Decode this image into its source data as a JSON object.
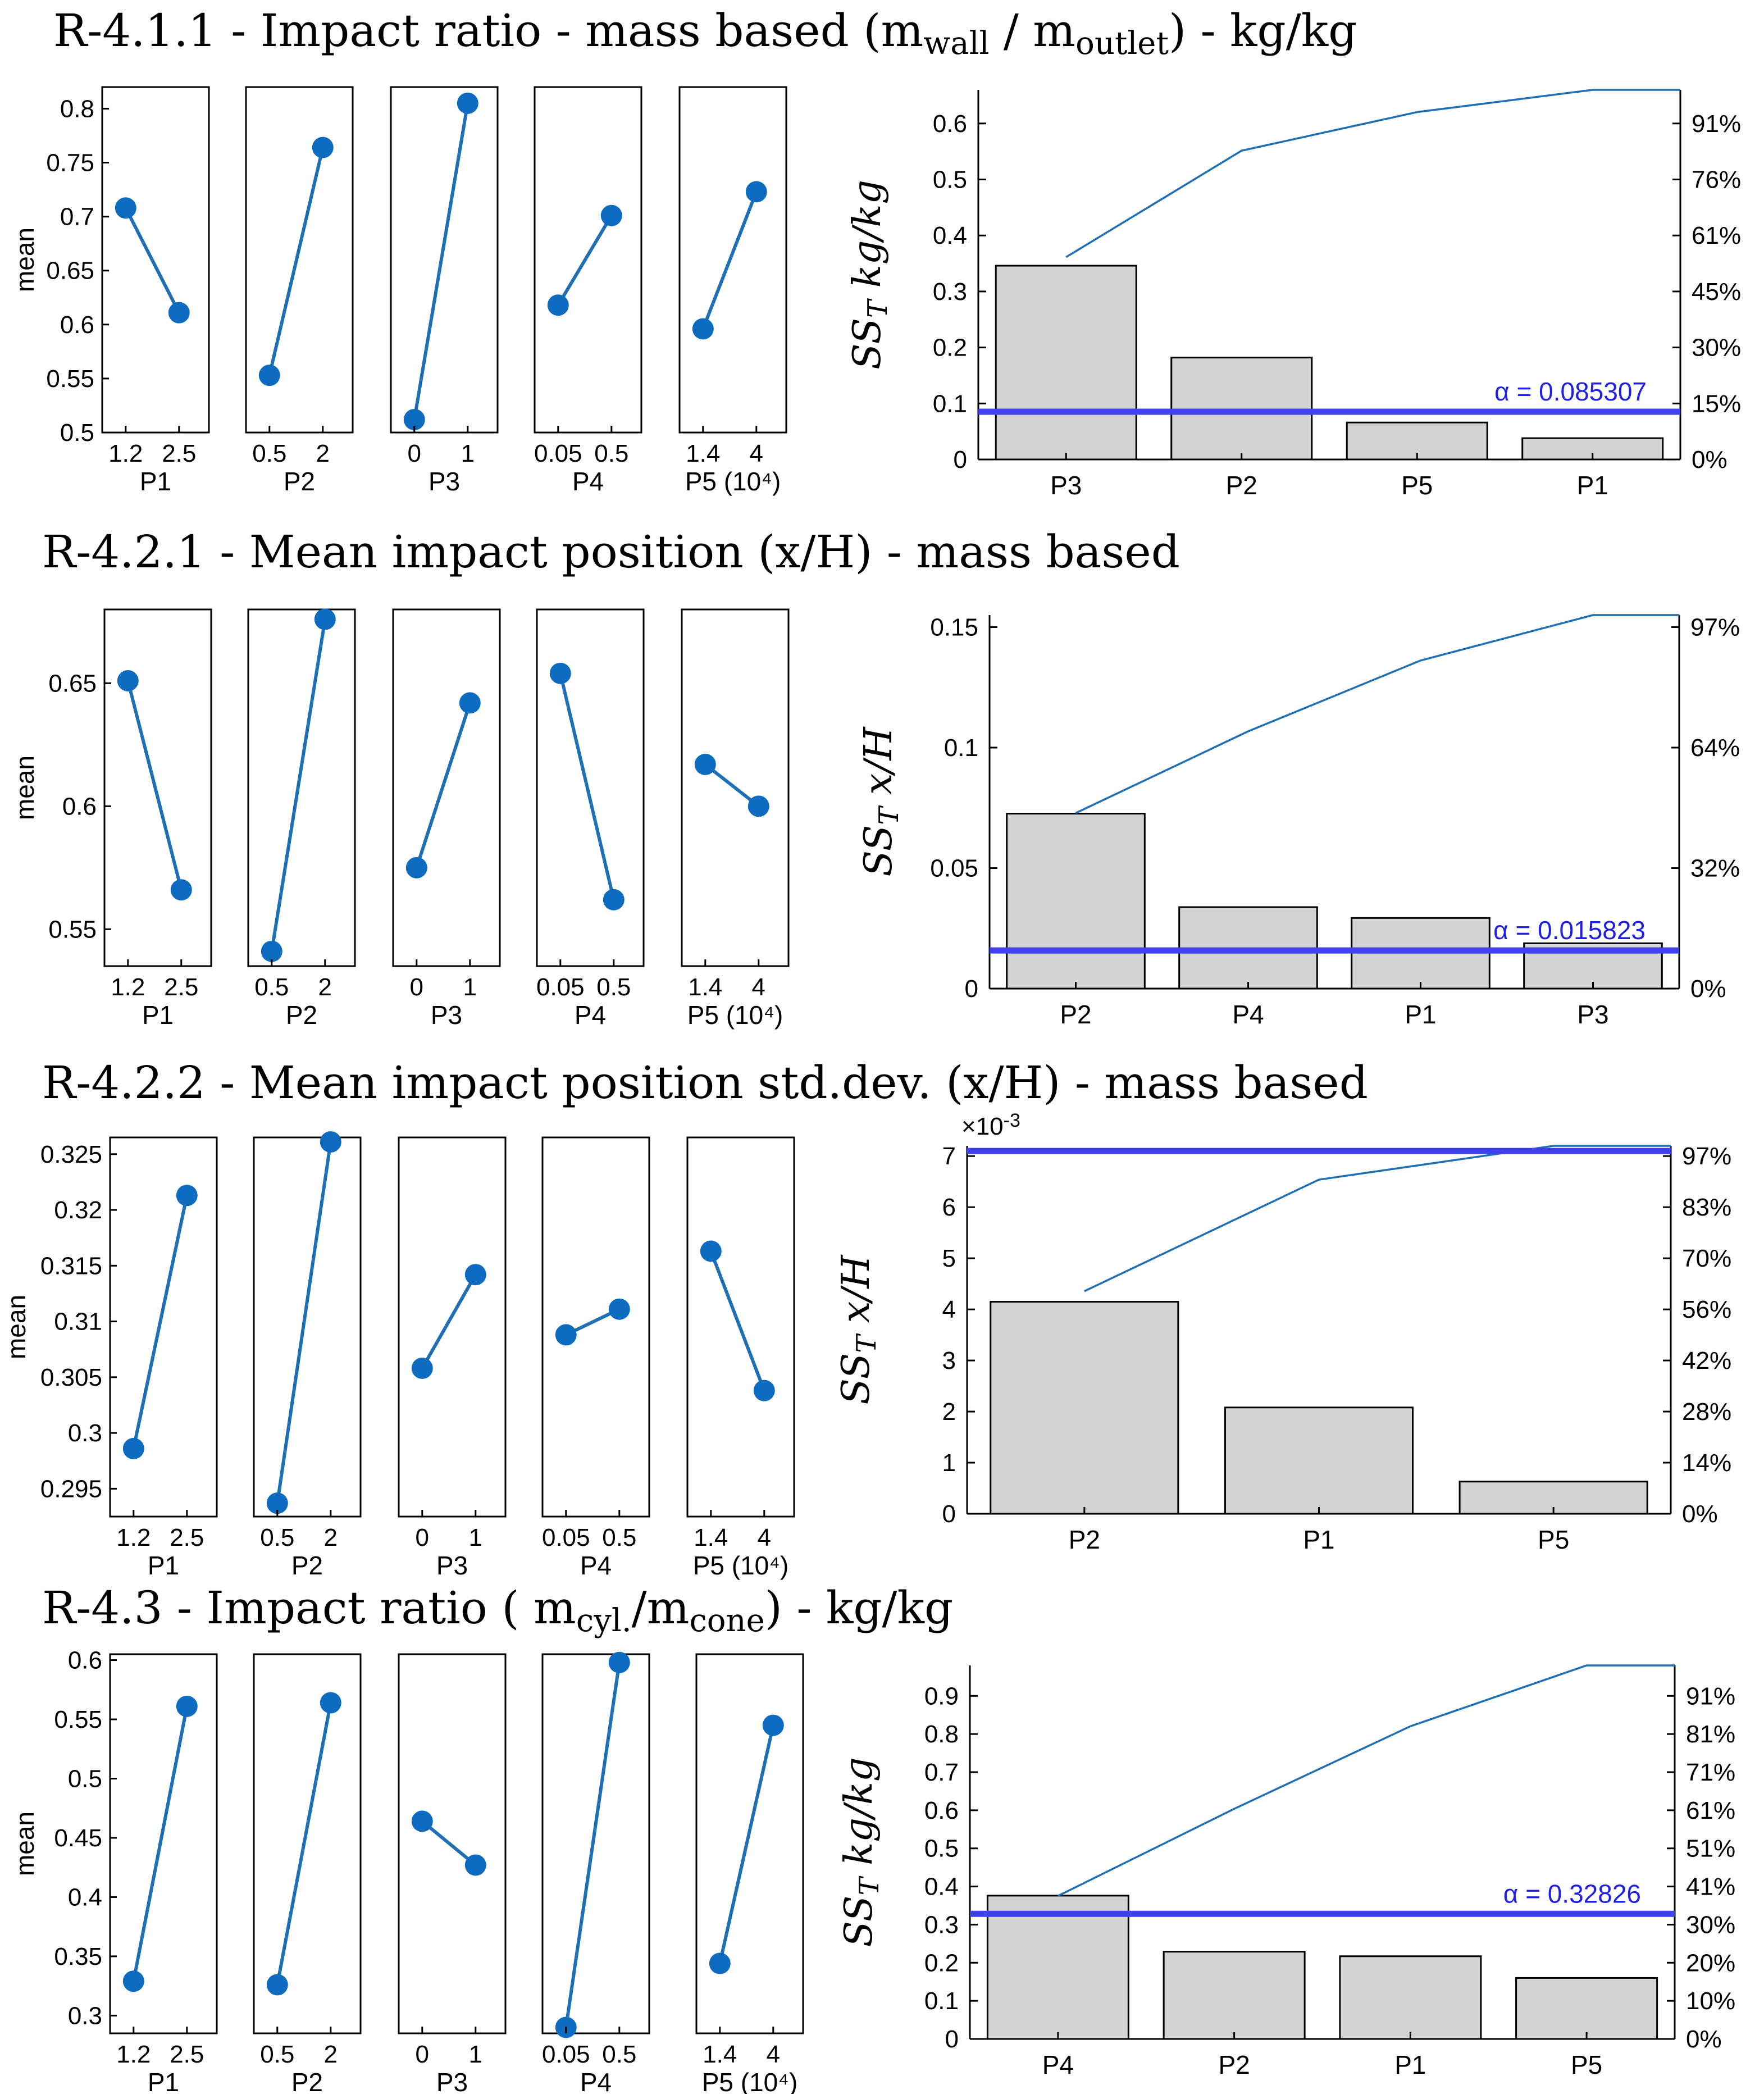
{
  "colors": {
    "line": "#1f6fb4",
    "marker": "#0d6cc0",
    "bar": "#d3d3d3",
    "alpha_line": "#4040ee",
    "alpha_text": "#1f1fe6"
  },
  "chart_data": [
    {
      "title_text": "R-4.1.1 - Impact ratio - mass based (m",
      "title_sub1": "wall",
      "title_mid": " / m",
      "title_sub2": "outlet",
      "title_tail": ") - kg/kg",
      "main_effects": {
        "type": "line",
        "ylabel": "mean",
        "ylim": [
          0.5,
          0.82
        ],
        "yticks": [
          "0.5",
          "0.55",
          "0.6",
          "0.65",
          "0.7",
          "0.75",
          "0.8"
        ],
        "panels": [
          {
            "name": "P1",
            "x": [
              "1.2",
              "2.5"
            ],
            "y": [
              0.708,
              0.611
            ]
          },
          {
            "name": "P2",
            "x": [
              "0.5",
              "2"
            ],
            "y": [
              0.553,
              0.764
            ]
          },
          {
            "name": "P3",
            "x": [
              "0",
              "1"
            ],
            "y": [
              0.512,
              0.805
            ]
          },
          {
            "name": "P4",
            "x": [
              "0.05",
              "0.5"
            ],
            "y": [
              0.618,
              0.701
            ]
          },
          {
            "name": "P5 (10⁴)",
            "x": [
              "1.4",
              "4"
            ],
            "y": [
              0.596,
              0.723
            ]
          }
        ]
      },
      "pareto": {
        "type": "bar",
        "ylabel_main": "SS",
        "ylabel_sub": "T",
        "ylabel_unit": " kg/kg",
        "categories": [
          "P3",
          "P2",
          "P5",
          "P1"
        ],
        "values": [
          0.346,
          0.182,
          0.066,
          0.038
        ],
        "ylim": [
          0,
          0.66
        ],
        "yticks": [
          "0",
          "0.1",
          "0.2",
          "0.3",
          "0.4",
          "0.5",
          "0.6"
        ],
        "y2ticks": [
          "0%",
          "15%",
          "30%",
          "45%",
          "61%",
          "76%",
          "91%"
        ],
        "alpha": 0.085307,
        "alpha_label": "α = 0.085307",
        "exponent_label": ""
      }
    },
    {
      "title_text": "R-4.2.1 - Mean impact position (x/H) - mass based",
      "title_sub1": "",
      "title_mid": "",
      "title_sub2": "",
      "title_tail": "",
      "main_effects": {
        "type": "line",
        "ylabel": "mean",
        "ylim": [
          0.535,
          0.68
        ],
        "yticks": [
          "0.55",
          "0.6",
          "0.65"
        ],
        "panels": [
          {
            "name": "P1",
            "x": [
              "1.2",
              "2.5"
            ],
            "y": [
              0.651,
              0.566
            ]
          },
          {
            "name": "P2",
            "x": [
              "0.5",
              "2"
            ],
            "y": [
              0.541,
              0.676
            ]
          },
          {
            "name": "P3",
            "x": [
              "0",
              "1"
            ],
            "y": [
              0.575,
              0.642
            ]
          },
          {
            "name": "P4",
            "x": [
              "0.05",
              "0.5"
            ],
            "y": [
              0.654,
              0.562
            ]
          },
          {
            "name": "P5 (10⁴)",
            "x": [
              "1.4",
              "4"
            ],
            "y": [
              0.617,
              0.6
            ]
          }
        ]
      },
      "pareto": {
        "type": "bar",
        "ylabel_main": "SS",
        "ylabel_sub": "T",
        "ylabel_unit": " x/H",
        "categories": [
          "P2",
          "P4",
          "P1",
          "P3"
        ],
        "values": [
          0.0726,
          0.0338,
          0.0293,
          0.0188
        ],
        "ylim": [
          0,
          0.155
        ],
        "yticks": [
          "0",
          "0.05",
          "0.1",
          "0.15"
        ],
        "y2ticks": [
          "0%",
          "32%",
          "64%",
          "97%"
        ],
        "alpha": 0.015823,
        "alpha_label": "α = 0.015823",
        "exponent_label": ""
      }
    },
    {
      "title_text": "R-4.2.2 - Mean impact position std.dev. (x/H) - mass based",
      "title_sub1": "",
      "title_mid": "",
      "title_sub2": "",
      "title_tail": "",
      "main_effects": {
        "type": "line",
        "ylabel": "mean",
        "ylim": [
          0.2925,
          0.3265
        ],
        "yticks": [
          "0.295",
          "0.3",
          "0.305",
          "0.31",
          "0.315",
          "0.32",
          "0.325"
        ],
        "panels": [
          {
            "name": "P1",
            "x": [
              "1.2",
              "2.5"
            ],
            "y": [
              0.2986,
              0.3213
            ]
          },
          {
            "name": "P2",
            "x": [
              "0.5",
              "2"
            ],
            "y": [
              0.2937,
              0.3261
            ]
          },
          {
            "name": "P3",
            "x": [
              "0",
              "1"
            ],
            "y": [
              0.3058,
              0.3142
            ]
          },
          {
            "name": "P4",
            "x": [
              "0.05",
              "0.5"
            ],
            "y": [
              0.3088,
              0.3111
            ]
          },
          {
            "name": "P5 (10⁴)",
            "x": [
              "1.4",
              "4"
            ],
            "y": [
              0.3163,
              0.3038
            ]
          }
        ]
      },
      "pareto": {
        "type": "bar",
        "ylabel_main": "SS",
        "ylabel_sub": "T",
        "ylabel_unit": " x/H",
        "categories": [
          "P2",
          "P1",
          "P5"
        ],
        "values": [
          4.15,
          2.08,
          0.63
        ],
        "ylim": [
          0,
          7.2
        ],
        "yticks": [
          "0",
          "1",
          "2",
          "3",
          "4",
          "5",
          "6",
          "7"
        ],
        "y2ticks": [
          "0%",
          "14%",
          "28%",
          "42%",
          "56%",
          "70%",
          "83%",
          "97%"
        ],
        "alpha": 7.1,
        "alpha_label": "",
        "exponent_label": "×10",
        "exponent_power": "-3"
      }
    },
    {
      "title_text": "R-4.3 - Impact ratio ( m",
      "title_sub1": "cyl.",
      "title_mid": "/m",
      "title_sub2": "cone",
      "title_tail": ") - kg/kg",
      "main_effects": {
        "type": "line",
        "ylabel": "mean",
        "ylim": [
          0.285,
          0.605
        ],
        "yticks": [
          "0.3",
          "0.35",
          "0.4",
          "0.45",
          "0.5",
          "0.55",
          "0.6"
        ],
        "panels": [
          {
            "name": "P1",
            "x": [
              "1.2",
              "2.5"
            ],
            "y": [
              0.329,
              0.561
            ]
          },
          {
            "name": "P2",
            "x": [
              "0.5",
              "2"
            ],
            "y": [
              0.326,
              0.564
            ]
          },
          {
            "name": "P3",
            "x": [
              "0",
              "1"
            ],
            "y": [
              0.464,
              0.427
            ]
          },
          {
            "name": "P4",
            "x": [
              "0.05",
              "0.5"
            ],
            "y": [
              0.29,
              0.598
            ]
          },
          {
            "name": "P5 (10⁴)",
            "x": [
              "1.4",
              "4"
            ],
            "y": [
              0.344,
              0.545
            ]
          }
        ]
      },
      "pareto": {
        "type": "bar",
        "ylabel_main": "SS",
        "ylabel_sub": "T",
        "ylabel_unit": " kg/kg",
        "categories": [
          "P4",
          "P2",
          "P1",
          "P5"
        ],
        "values": [
          0.376,
          0.229,
          0.217,
          0.16
        ],
        "ylim": [
          0,
          0.98
        ],
        "yticks": [
          "0",
          "0.1",
          "0.2",
          "0.3",
          "0.4",
          "0.5",
          "0.6",
          "0.7",
          "0.8",
          "0.9"
        ],
        "y2ticks": [
          "0%",
          "10%",
          "20%",
          "30%",
          "41%",
          "51%",
          "61%",
          "71%",
          "81%",
          "91%"
        ],
        "alpha": 0.32826,
        "alpha_label": "α = 0.32826",
        "exponent_label": ""
      }
    }
  ]
}
